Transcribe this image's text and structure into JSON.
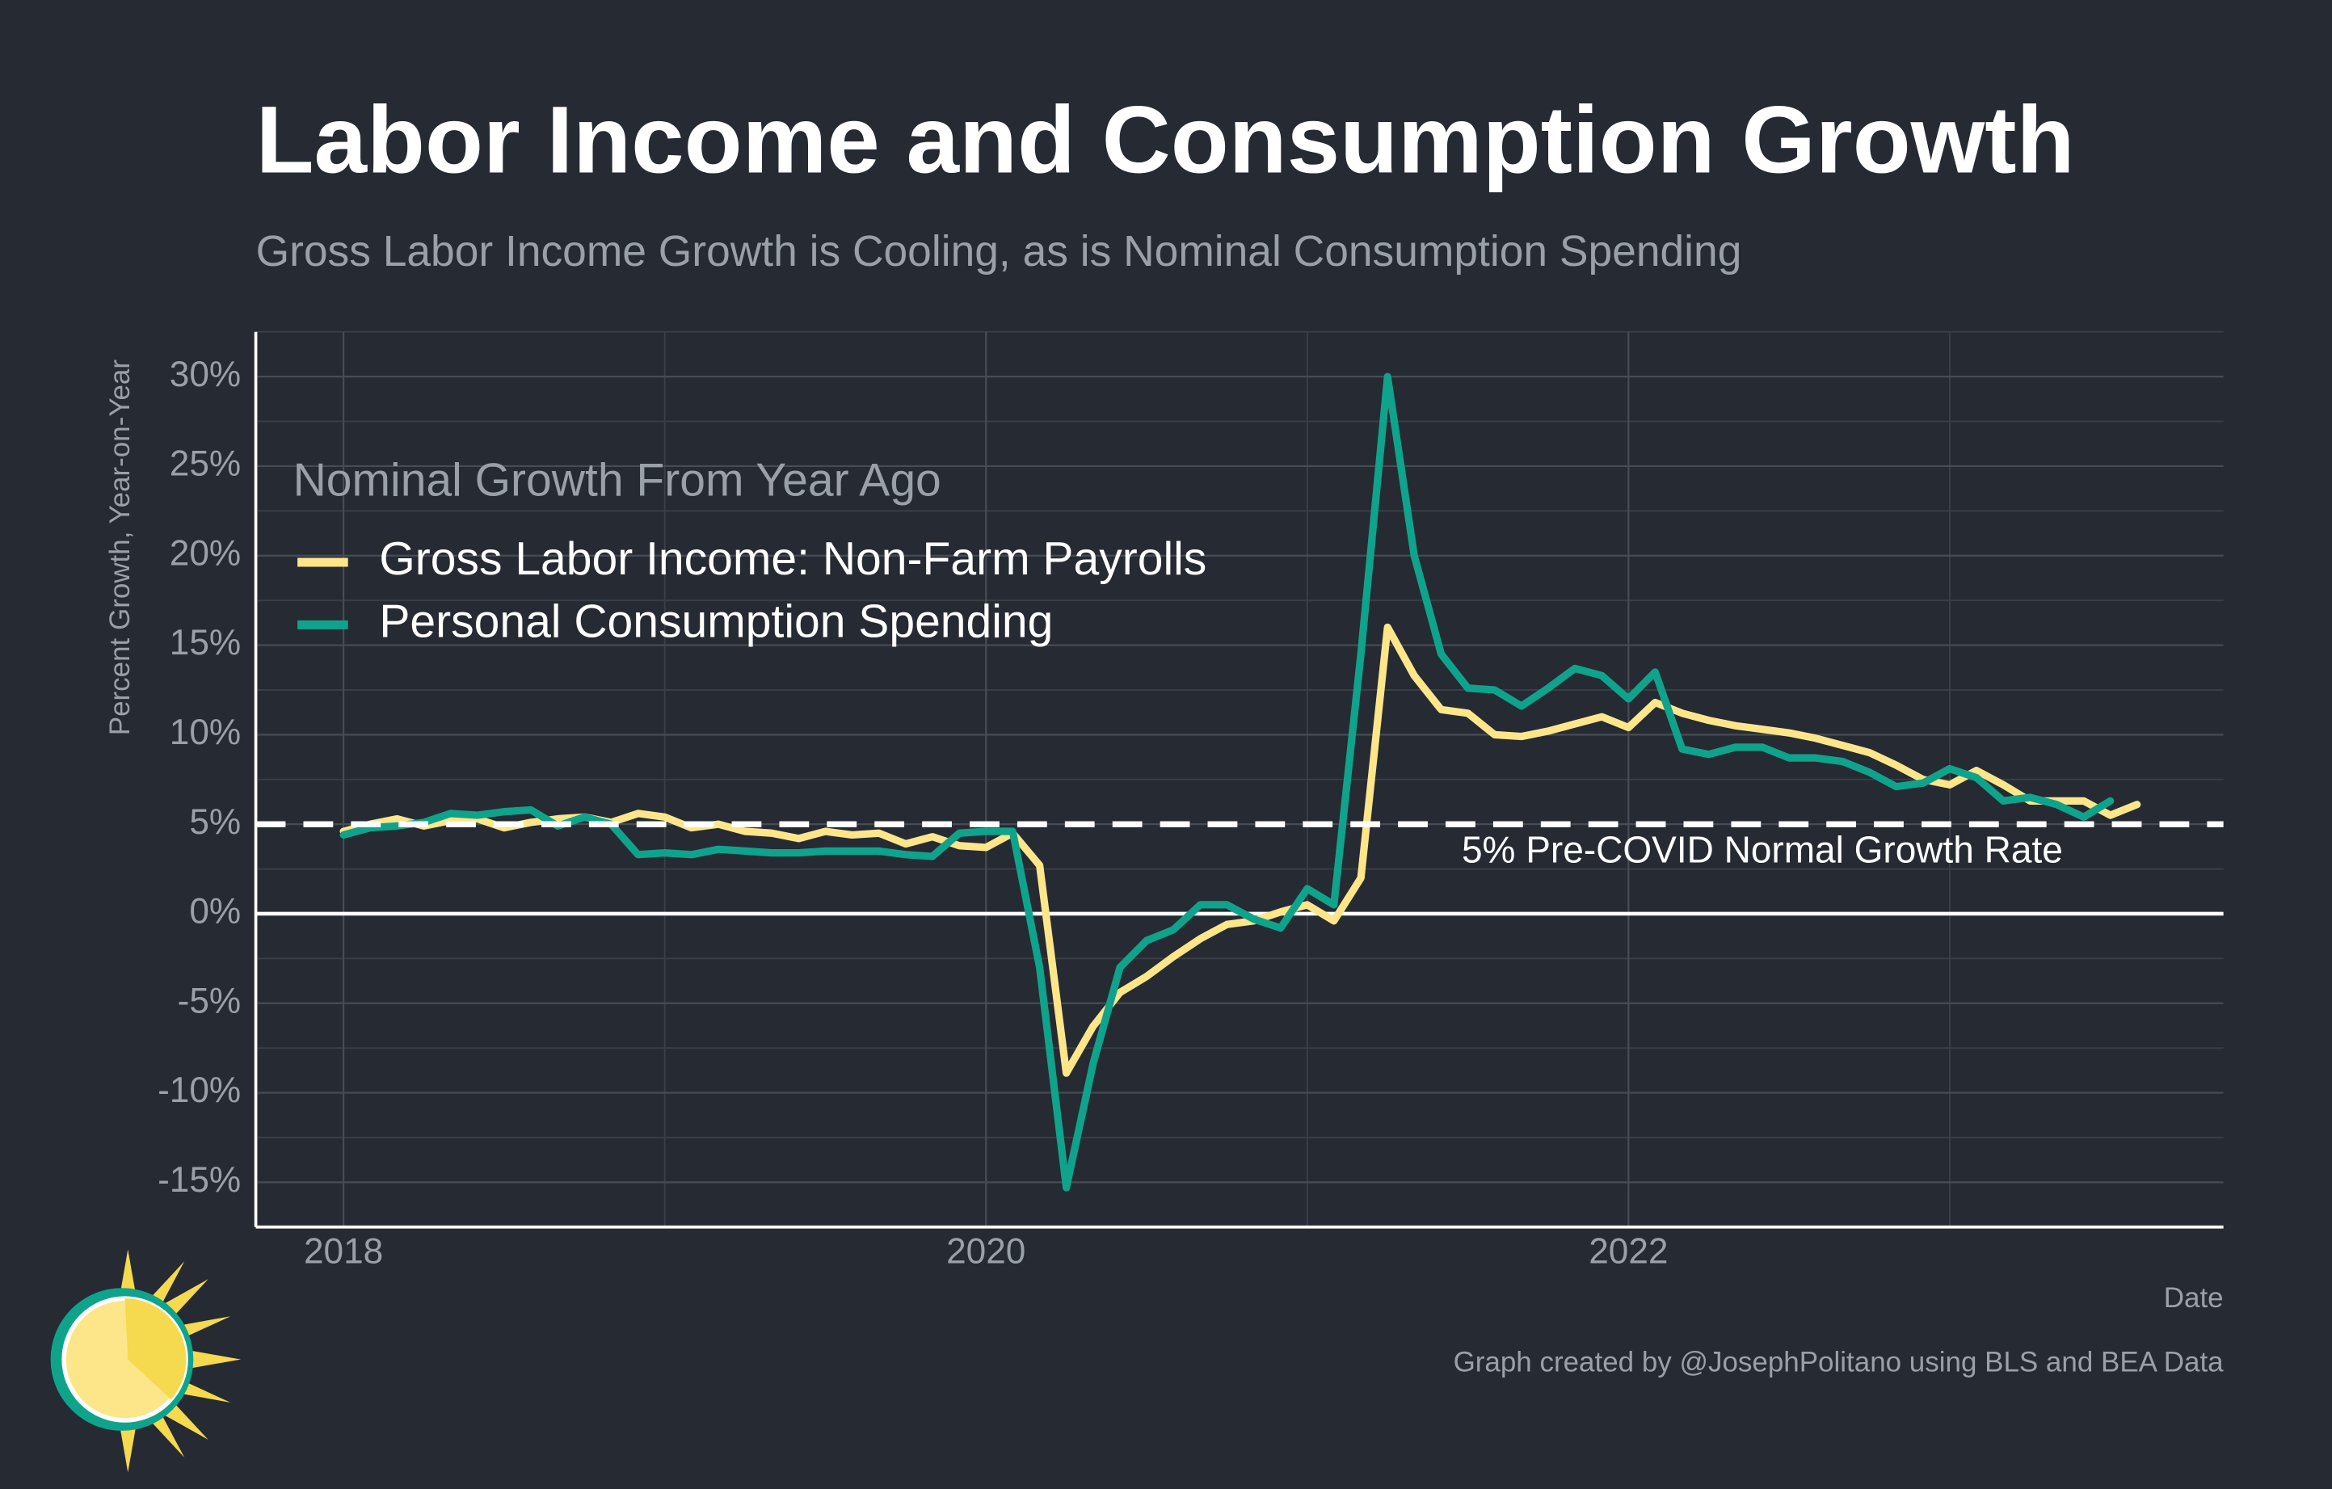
{
  "chart_data": {
    "type": "line",
    "title": "Labor Income and Consumption Growth",
    "subtitle": "Gross Labor Income Growth is Cooling, as is Nominal Consumption Spending",
    "y_label": "Percent Growth, Year-on-Year",
    "x_label": "Date",
    "legend_title": "Nominal Growth From Year Ago",
    "caption": "Graph created by @JosephPolitano using BLS and BEA Data",
    "reference_line": {
      "value": 5,
      "label": "5% Pre-COVID Normal Growth Rate",
      "color": "#ffffff"
    },
    "zero_line": {
      "value": 0,
      "color": "#ffffff"
    },
    "x": [
      2018,
      2018.083,
      2018.167,
      2018.25,
      2018.333,
      2018.417,
      2018.5,
      2018.583,
      2018.667,
      2018.75,
      2018.833,
      2018.917,
      2019,
      2019.083,
      2019.167,
      2019.25,
      2019.333,
      2019.417,
      2019.5,
      2019.583,
      2019.667,
      2019.75,
      2019.833,
      2019.917,
      2020,
      2020.083,
      2020.167,
      2020.25,
      2020.333,
      2020.417,
      2020.5,
      2020.583,
      2020.667,
      2020.75,
      2020.833,
      2020.917,
      2021,
      2021.083,
      2021.167,
      2021.25,
      2021.333,
      2021.417,
      2021.5,
      2021.583,
      2021.667,
      2021.75,
      2021.833,
      2021.917,
      2022,
      2022.083,
      2022.167,
      2022.25,
      2022.333,
      2022.417,
      2022.5,
      2022.583,
      2022.667,
      2022.75,
      2022.833,
      2022.917,
      2023,
      2023.083,
      2023.167,
      2023.25,
      2023.333,
      2023.417,
      2023.5,
      2023.583
    ],
    "series": [
      {
        "name": "Gross Labor Income: Non-Farm Payrolls",
        "color": "#fde68a",
        "values": [
          4.6,
          5.0,
          5.3,
          4.9,
          5.2,
          5.3,
          4.8,
          5.1,
          5.3,
          5.4,
          5.1,
          5.6,
          5.4,
          4.8,
          5.0,
          4.6,
          4.5,
          4.2,
          4.6,
          4.4,
          4.5,
          3.9,
          4.3,
          3.8,
          3.7,
          4.5,
          2.7,
          -8.9,
          -6.3,
          -4.4,
          -3.5,
          -2.4,
          -1.4,
          -0.6,
          -0.4,
          0.1,
          0.5,
          -0.4,
          2.0,
          16.0,
          13.3,
          11.4,
          11.2,
          10.0,
          9.9,
          10.2,
          10.6,
          11.0,
          10.4,
          11.8,
          11.2,
          10.8,
          10.5,
          10.3,
          10.1,
          9.8,
          9.4,
          9.0,
          8.3,
          7.5,
          7.2,
          8.0,
          7.2,
          6.3,
          6.3,
          6.3,
          5.5,
          6.1
        ]
      },
      {
        "name": "Personal Consumption Spending",
        "color": "#0fa38c",
        "values": [
          4.4,
          4.8,
          4.9,
          5.1,
          5.6,
          5.5,
          5.7,
          5.8,
          4.9,
          5.4,
          5.0,
          3.3,
          3.4,
          3.3,
          3.6,
          3.5,
          3.4,
          3.4,
          3.5,
          3.5,
          3.5,
          3.3,
          3.2,
          4.5,
          4.6,
          4.6,
          -3.0,
          -15.3,
          -8.4,
          -3.0,
          -1.5,
          -0.9,
          0.5,
          0.5,
          -0.3,
          -0.8,
          1.4,
          0.5,
          14.5,
          30.0,
          20.0,
          14.5,
          12.6,
          12.5,
          11.6,
          12.6,
          13.7,
          13.3,
          12.0,
          13.5,
          9.2,
          8.9,
          9.3,
          9.3,
          8.7,
          8.7,
          8.5,
          7.9,
          7.1,
          7.3,
          8.1,
          7.6,
          6.3,
          6.5,
          6.1,
          5.4,
          6.3,
          null
        ]
      }
    ],
    "xlim": [
      2017.727,
      2023.852
    ],
    "ylim": [
      -17.5,
      32.5
    ],
    "xticks": [
      2018,
      2020,
      2022
    ],
    "yticks": [
      {
        "value": 30,
        "label": "30%"
      },
      {
        "value": 25,
        "label": "25%"
      },
      {
        "value": 20,
        "label": "20%"
      },
      {
        "value": 15,
        "label": "15%"
      },
      {
        "value": 10,
        "label": "10%"
      },
      {
        "value": 5,
        "label": "5%"
      },
      {
        "value": 0,
        "label": "0%"
      },
      {
        "value": -5,
        "label": "-5%"
      },
      {
        "value": -10,
        "label": "-10%"
      },
      {
        "value": -15,
        "label": "-15%"
      }
    ],
    "grid": true,
    "legend": "top-left"
  }
}
